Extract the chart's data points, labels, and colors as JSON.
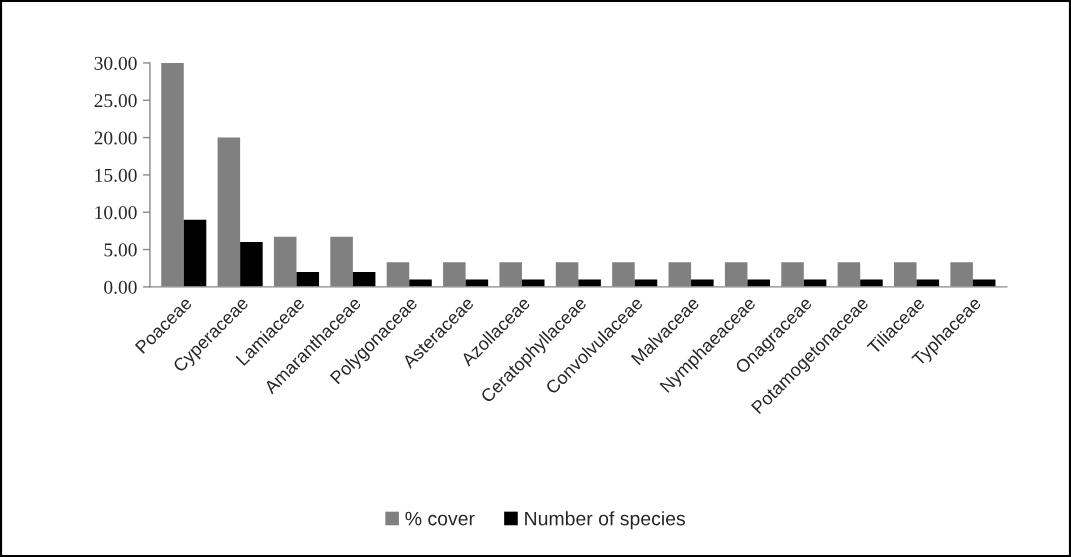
{
  "chart_data": {
    "type": "bar",
    "categories": [
      "Poaceae",
      "Cyperaceae",
      "Lamiaceae",
      "Amaranthaceae",
      "Polygonaceae",
      "Asteraceae",
      "Azollaceae",
      "Ceratophyllaceae",
      "Convolvulaceae",
      "Malvaceae",
      "Nymphaeaceae",
      "Onagraceae",
      "Potamogetonaceae",
      "Tiliaceae",
      "Typhaceae"
    ],
    "series": [
      {
        "name": "% cover",
        "color": "#808080",
        "values": [
          30,
          20,
          6.7,
          6.7,
          3.3,
          3.3,
          3.3,
          3.3,
          3.3,
          3.3,
          3.3,
          3.3,
          3.3,
          3.3,
          3.3
        ]
      },
      {
        "name": "Number of species",
        "color": "#000000",
        "values": [
          9,
          6,
          2,
          2,
          1,
          1,
          1,
          1,
          1,
          1,
          1,
          1,
          1,
          1,
          1
        ]
      }
    ],
    "ylim": [
      0,
      30
    ],
    "yticks": [
      {
        "value": 0,
        "label": "0.00"
      },
      {
        "value": 5,
        "label": "5.00"
      },
      {
        "value": 10,
        "label": "10.00"
      },
      {
        "value": 15,
        "label": "15.00"
      },
      {
        "value": 20,
        "label": "20.00"
      },
      {
        "value": 25,
        "label": "25.00"
      },
      {
        "value": 30,
        "label": "30.00"
      }
    ],
    "legend": "bottom"
  }
}
